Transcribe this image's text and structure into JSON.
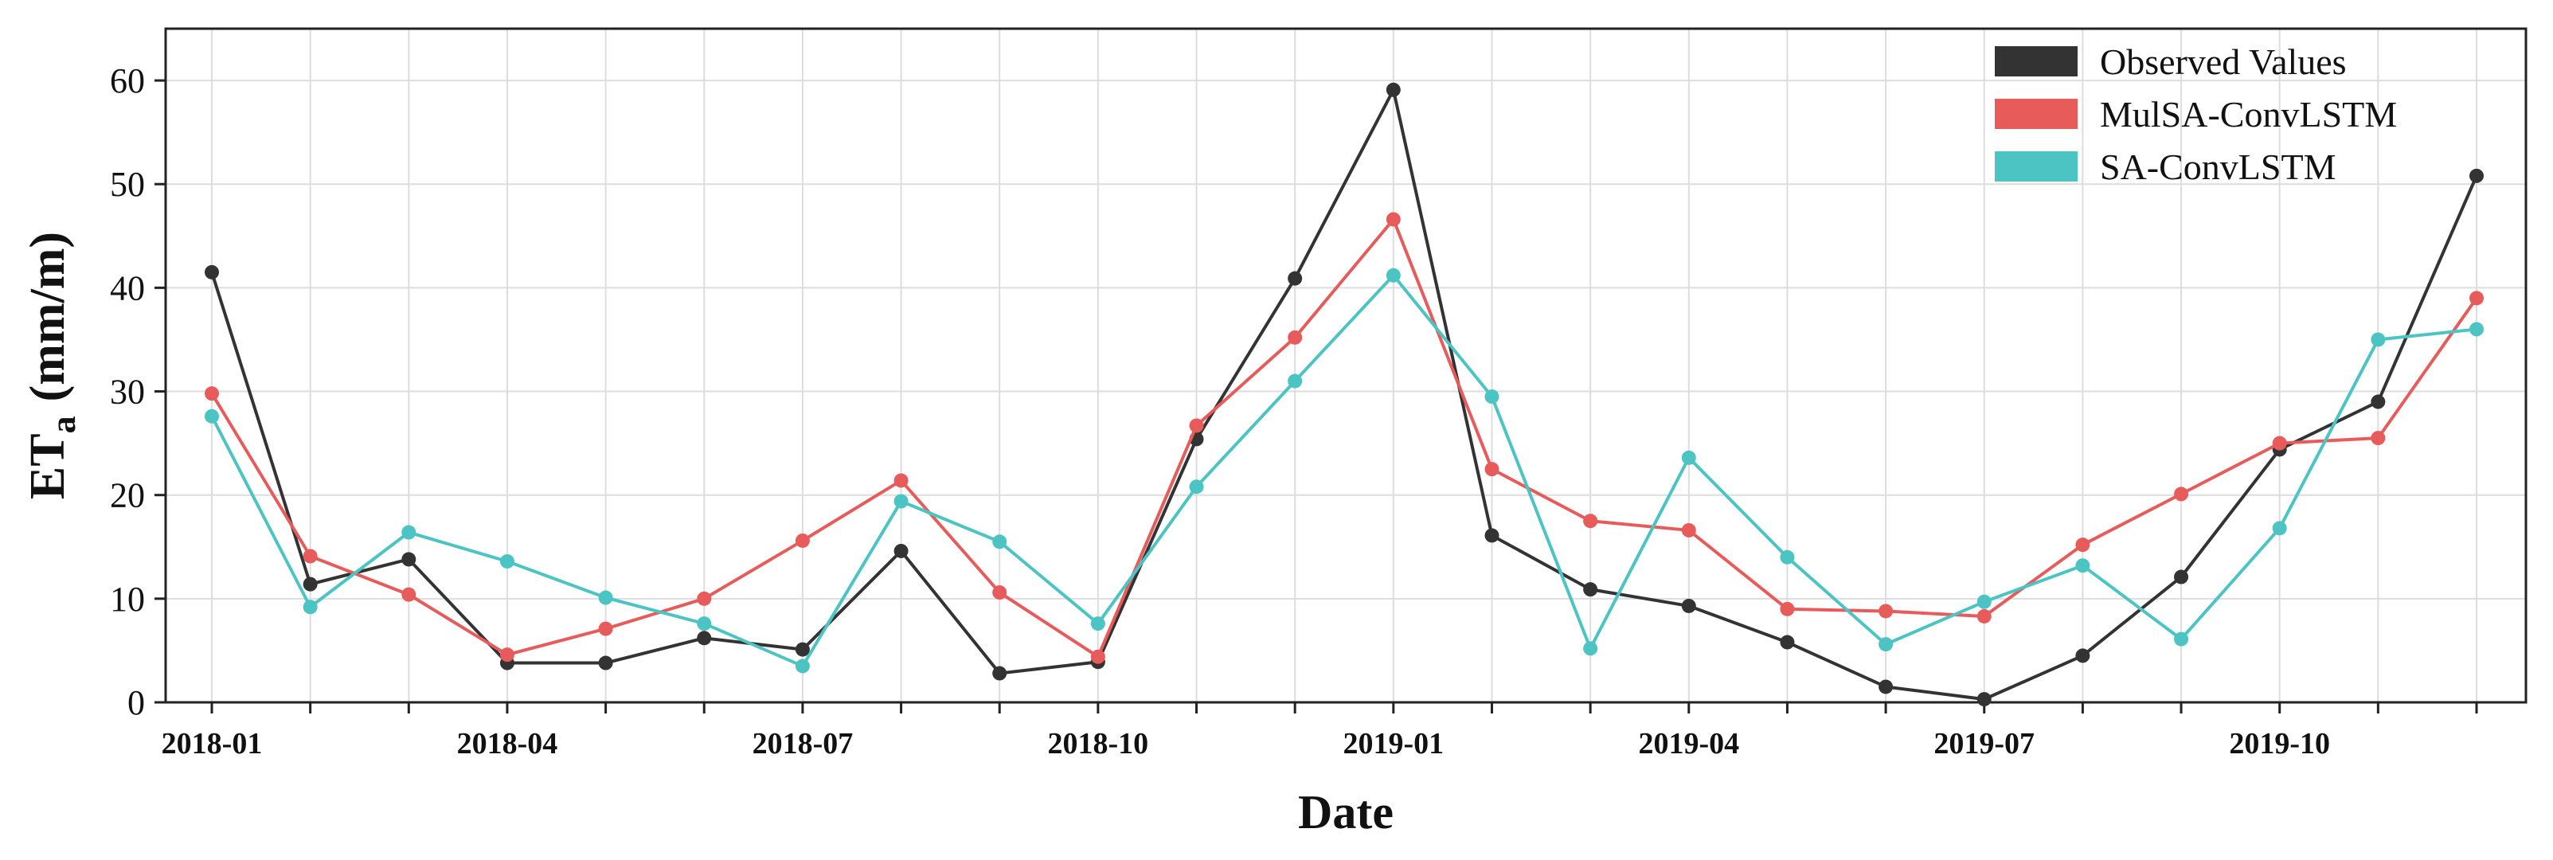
{
  "chart_data": {
    "type": "line",
    "title": "",
    "xlabel": "Date",
    "ylabel_main": "ET",
    "ylabel_sub": "a",
    "ylabel_units": "(mm/m)",
    "ylim": [
      0,
      65
    ],
    "yticks": [
      "0",
      "10",
      "20",
      "30",
      "40",
      "50",
      "60"
    ],
    "ytick_values": [
      0,
      10,
      20,
      30,
      40,
      50,
      60
    ],
    "xtick_labels": [
      {
        "index": 0,
        "label": "2018-01"
      },
      {
        "index": 3,
        "label": "2018-04"
      },
      {
        "index": 6,
        "label": "2018-07"
      },
      {
        "index": 9,
        "label": "2018-10"
      },
      {
        "index": 12,
        "label": "2019-01"
      },
      {
        "index": 15,
        "label": "2019-04"
      },
      {
        "index": 18,
        "label": "2019-07"
      },
      {
        "index": 21,
        "label": "2019-10"
      }
    ],
    "x": [
      "2018-01",
      "2018-02",
      "2018-03",
      "2018-04",
      "2018-05",
      "2018-06",
      "2018-07",
      "2018-08",
      "2018-09",
      "2018-10",
      "2018-11",
      "2018-12",
      "2019-01",
      "2019-02",
      "2019-03",
      "2019-04",
      "2019-05",
      "2019-06",
      "2019-07",
      "2019-08",
      "2019-09",
      "2019-10",
      "2019-11",
      "2019-12"
    ],
    "grid": true,
    "legend_position": "top-right",
    "series": [
      {
        "name": "Observed Values",
        "color": "#333333",
        "values": [
          41.5,
          11.4,
          13.8,
          3.8,
          3.8,
          6.2,
          5.1,
          14.6,
          2.8,
          3.9,
          25.4,
          40.9,
          59.1,
          16.1,
          10.9,
          9.3,
          5.8,
          1.5,
          0.3,
          4.5,
          12.1,
          24.4,
          29.0,
          50.8
        ]
      },
      {
        "name": "MulSA-ConvLSTM",
        "color": "#E85B5B",
        "values": [
          29.8,
          14.1,
          10.4,
          4.6,
          7.1,
          10.0,
          15.6,
          21.4,
          10.6,
          4.4,
          26.7,
          35.2,
          46.6,
          22.5,
          17.5,
          16.6,
          9.0,
          8.8,
          8.3,
          15.2,
          20.1,
          25.0,
          25.5,
          39.0
        ]
      },
      {
        "name": "SA-ConvLSTM",
        "color": "#4CC4C4",
        "values": [
          27.6,
          9.2,
          16.4,
          13.6,
          10.1,
          7.6,
          3.5,
          19.4,
          15.5,
          7.6,
          20.8,
          31.0,
          41.2,
          29.5,
          5.2,
          23.6,
          14.0,
          5.6,
          9.7,
          13.2,
          6.1,
          16.8,
          35.0,
          36.0
        ]
      }
    ]
  }
}
